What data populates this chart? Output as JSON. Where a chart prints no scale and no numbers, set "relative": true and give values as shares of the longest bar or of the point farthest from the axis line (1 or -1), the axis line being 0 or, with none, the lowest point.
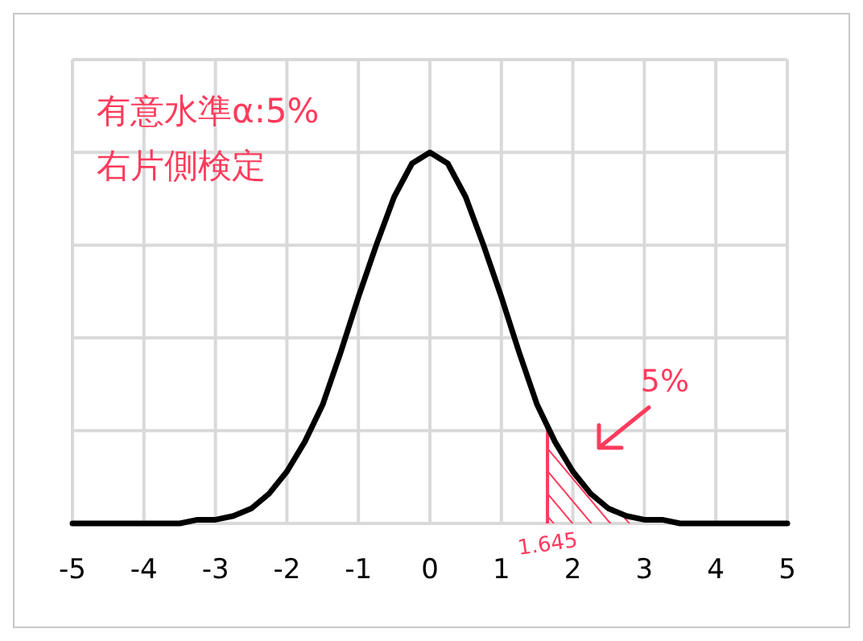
{
  "chart_data": {
    "type": "line",
    "relative": true,
    "title": "有意水準α:5%",
    "subtitle": "右片側検定",
    "x": [
      -5,
      -4.75,
      -4.5,
      -4.25,
      -4,
      -3.75,
      -3.5,
      -3.25,
      -3,
      -2.75,
      -2.5,
      -2.25,
      -2,
      -1.75,
      -1.5,
      -1.25,
      -1,
      -0.75,
      -0.5,
      -0.25,
      0,
      0.25,
      0.5,
      0.75,
      1,
      1.25,
      1.5,
      1.75,
      2,
      2.25,
      2.5,
      2.75,
      3,
      3.25,
      3.5,
      3.75,
      4,
      4.25,
      4.5,
      4.75,
      5
    ],
    "series": [
      {
        "type": "area",
        "color": "#ff3b5c",
        "x": [
          1.645,
          1.75,
          2,
          2.25,
          2.5,
          2.75,
          3
        ],
        "values": [
          0.26,
          0.22,
          0.14,
          0.08,
          0.04,
          0.02,
          0.01
        ]
      },
      {
        "color": "#000000",
        "values": [
          0,
          0,
          0,
          0,
          0,
          0,
          0,
          0.01,
          0.01,
          0.02,
          0.04,
          0.08,
          0.14,
          0.22,
          0.32,
          0.46,
          0.61,
          0.75,
          0.88,
          0.97,
          1,
          0.97,
          0.88,
          0.75,
          0.61,
          0.46,
          0.32,
          0.22,
          0.14,
          0.08,
          0.04,
          0.02,
          0.01,
          0.01,
          0,
          0,
          0,
          0,
          0,
          0,
          0
        ]
      }
    ],
    "xlim": [
      -5,
      5
    ],
    "xticks": [
      -5,
      -4,
      -3,
      -2,
      -1,
      0,
      1,
      2,
      3,
      4,
      5
    ],
    "grid": true,
    "marker": "none",
    "line_style": "solid",
    "annotations": [
      {
        "text": "1.645",
        "x": 1.645,
        "y": 0
      },
      "5%"
    ]
  }
}
